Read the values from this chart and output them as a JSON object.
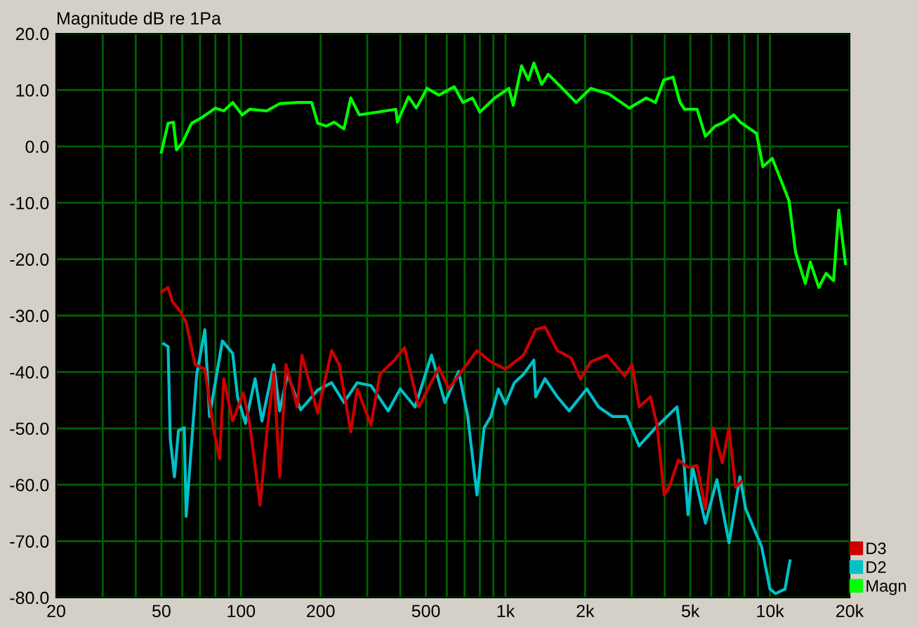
{
  "chart_data": {
    "type": "line",
    "ylabel": "Magnitude dB re 1Pa",
    "log": "x",
    "grid": true,
    "legend": "bottom right",
    "marker": "none",
    "line_style": "solid",
    "xlim": [
      20,
      20000
    ],
    "ylim": [
      -80,
      20
    ],
    "xticks": [
      20,
      {
        "value": 30,
        "label": null
      },
      {
        "value": 40,
        "label": null
      },
      50,
      {
        "value": 60,
        "label": null
      },
      {
        "value": 70,
        "label": null
      },
      {
        "value": 80,
        "label": null
      },
      {
        "value": 90,
        "label": null
      },
      100,
      200,
      {
        "value": 300,
        "label": null
      },
      {
        "value": 400,
        "label": null
      },
      500,
      {
        "value": 600,
        "label": null
      },
      {
        "value": 700,
        "label": null
      },
      {
        "value": 800,
        "label": null
      },
      {
        "value": 900,
        "label": null
      },
      {
        "value": 1000,
        "label": "1k"
      },
      {
        "value": 2000,
        "label": "2k"
      },
      {
        "value": 3000,
        "label": null
      },
      {
        "value": 4000,
        "label": null
      },
      {
        "value": 5000,
        "label": "5k"
      },
      {
        "value": 6000,
        "label": null
      },
      {
        "value": 7000,
        "label": null
      },
      {
        "value": 8000,
        "label": null
      },
      {
        "value": 9000,
        "label": null
      },
      {
        "value": 10000,
        "label": "10k"
      },
      {
        "value": 20000,
        "label": "20k"
      }
    ],
    "yticks": [
      {
        "value": 20,
        "label": "20.0"
      },
      {
        "value": 10,
        "label": "10.0"
      },
      {
        "value": 0,
        "label": "0.0"
      },
      {
        "value": -10,
        "label": "-10.0"
      },
      {
        "value": -20,
        "label": "-20.0"
      },
      {
        "value": -30,
        "label": "-30.0"
      },
      {
        "value": -40,
        "label": "-40.0"
      },
      {
        "value": -50,
        "label": "-50.0"
      },
      {
        "value": -60,
        "label": "-60.0"
      },
      {
        "value": -70,
        "label": "-70.0"
      },
      {
        "value": -80,
        "label": "-80.0"
      }
    ],
    "series": [
      {
        "name": "D3",
        "color": "#cc0000",
        "x": [
          50,
          53,
          55,
          59,
          62,
          67,
          73,
          79,
          83,
          86,
          93,
          102,
          108,
          118,
          125,
          133,
          140,
          148,
          163,
          170,
          195,
          220,
          235,
          260,
          275,
          310,
          335,
          380,
          415,
          470,
          560,
          610,
          780,
          880,
          1000,
          1170,
          1300,
          1410,
          1570,
          1770,
          1920,
          2100,
          2420,
          2820,
          3010,
          3200,
          3530,
          3740,
          3980,
          4200,
          4500,
          4900,
          5300,
          5700,
          6100,
          6600,
          7000,
          7400,
          7800
        ],
        "values": [
          -25.8,
          -25.0,
          -27.5,
          -29.3,
          -31.2,
          -38.7,
          -39.5,
          -50.6,
          -55.4,
          -41.2,
          -48.7,
          -43.7,
          -49.4,
          -63.6,
          -51.1,
          -40.0,
          -58.6,
          -38.7,
          -46.2,
          -37.0,
          -47.3,
          -36.2,
          -38.7,
          -50.6,
          -43.0,
          -49.4,
          -40.4,
          -37.9,
          -35.7,
          -46.2,
          -39.2,
          -43.0,
          -36.2,
          -38.2,
          -39.5,
          -37.0,
          -32.5,
          -32.0,
          -36.2,
          -37.5,
          -41.2,
          -38.2,
          -37.0,
          -40.7,
          -38.7,
          -46.2,
          -44.4,
          -49.4,
          -61.8,
          -59.9,
          -55.6,
          -56.9,
          -56.6,
          -64.3,
          -49.9,
          -56.1,
          -49.9,
          -60.4,
          -59.4
        ]
      },
      {
        "name": "D2",
        "color": "#00c0c8",
        "x": [
          51,
          53,
          54,
          56,
          58,
          61,
          62,
          68,
          73,
          76,
          85,
          93,
          97,
          104,
          113,
          120,
          133,
          140,
          150,
          168,
          195,
          220,
          245,
          275,
          310,
          360,
          400,
          455,
          525,
          590,
          665,
          720,
          780,
          830,
          880,
          940,
          1000,
          1080,
          1170,
          1280,
          1300,
          1410,
          1570,
          1740,
          2030,
          2250,
          2540,
          2870,
          3200,
          3690,
          4080,
          4450,
          4720,
          4900,
          5100,
          5700,
          6300,
          7000,
          7700,
          8100,
          8700,
          9300,
          10000,
          10500,
          11400,
          11900
        ],
        "values": [
          -35.0,
          -35.5,
          -51.9,
          -58.6,
          -50.4,
          -49.9,
          -65.6,
          -40.4,
          -32.5,
          -47.9,
          -34.5,
          -36.7,
          -44.4,
          -49.1,
          -41.2,
          -48.7,
          -38.7,
          -46.9,
          -40.4,
          -46.7,
          -43.2,
          -41.9,
          -45.4,
          -41.9,
          -42.4,
          -46.9,
          -43.0,
          -46.2,
          -37.0,
          -45.4,
          -39.9,
          -47.9,
          -61.8,
          -49.9,
          -47.9,
          -43.0,
          -45.7,
          -41.9,
          -40.4,
          -37.9,
          -44.4,
          -41.2,
          -44.4,
          -46.9,
          -43.0,
          -46.2,
          -47.9,
          -47.9,
          -53.1,
          -49.9,
          -47.9,
          -46.2,
          -55.6,
          -65.3,
          -56.9,
          -66.8,
          -59.1,
          -70.3,
          -58.6,
          -64.3,
          -67.8,
          -71.0,
          -78.5,
          -79.3,
          -78.5,
          -73.5
        ]
      },
      {
        "name": "Magn",
        "color": "#00ff00",
        "x": [
          50,
          53,
          55.5,
          57,
          60,
          65,
          71,
          80,
          86,
          93,
          101,
          108,
          125,
          140,
          165,
          185,
          195,
          210,
          225,
          245,
          260,
          280,
          330,
          385,
          390,
          430,
          460,
          505,
          560,
          640,
          690,
          750,
          800,
          910,
          1030,
          1070,
          1150,
          1220,
          1280,
          1370,
          1450,
          1640,
          1850,
          2100,
          2460,
          2940,
          3400,
          3690,
          3970,
          4300,
          4570,
          4750,
          5300,
          5700,
          6200,
          6700,
          7300,
          7720,
          8900,
          9400,
          10200,
          11800,
          12500,
          13600,
          14200,
          15300,
          16300,
          17400,
          18200,
          19300
        ],
        "values": [
          -1.0,
          4.1,
          4.3,
          -0.6,
          0.6,
          4.1,
          5.1,
          6.8,
          6.3,
          7.8,
          5.6,
          6.6,
          6.3,
          7.6,
          7.8,
          7.8,
          4.1,
          3.6,
          4.3,
          3.1,
          8.6,
          5.6,
          6.1,
          6.6,
          4.3,
          8.8,
          6.8,
          10.3,
          9.1,
          10.6,
          7.8,
          8.6,
          6.1,
          8.6,
          10.3,
          7.3,
          14.3,
          11.8,
          14.8,
          11.0,
          12.8,
          10.3,
          7.8,
          10.3,
          9.3,
          6.8,
          8.6,
          7.8,
          11.8,
          12.3,
          7.8,
          6.6,
          6.6,
          1.8,
          3.6,
          4.3,
          5.6,
          4.3,
          2.3,
          -3.6,
          -2.1,
          -9.6,
          -18.8,
          -24.3,
          -20.5,
          -25.0,
          -22.5,
          -23.8,
          -11.3,
          -20.8
        ]
      }
    ]
  }
}
